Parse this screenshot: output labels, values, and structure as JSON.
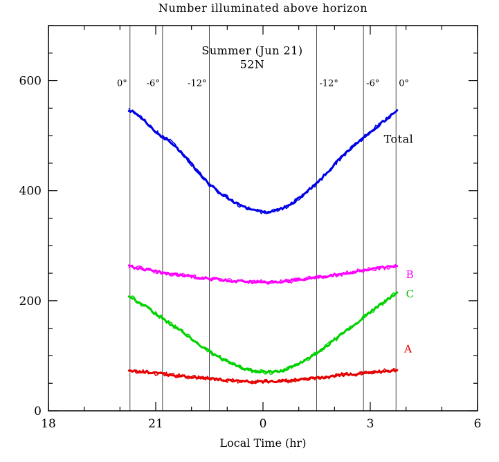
{
  "chart_data": {
    "type": "line",
    "title": "Number illuminated above horizon",
    "xlabel": "Local Time (hr)",
    "ylabel": "",
    "xlim": [
      18,
      30
    ],
    "ylim": [
      0,
      700
    ],
    "grid": false,
    "legend_position": "inline-labels",
    "x_ticks": [
      {
        "value": 18,
        "label": "18"
      },
      {
        "value": 21,
        "label": "21"
      },
      {
        "value": 24,
        "label": "0"
      },
      {
        "value": 27,
        "label": "3"
      },
      {
        "value": 30,
        "label": "6"
      }
    ],
    "x_minor_step": 1,
    "y_ticks": [
      {
        "value": 0,
        "label": "0"
      },
      {
        "value": 200,
        "label": "200"
      },
      {
        "value": 400,
        "label": "400"
      },
      {
        "value": 600,
        "label": "600"
      }
    ],
    "y_minor_step": 50,
    "sun_labels_y": 590,
    "sun_lines": [
      {
        "t": 20.28,
        "label": "0°",
        "label_side": "left"
      },
      {
        "t": 21.19,
        "label": "-6°",
        "label_side": "left"
      },
      {
        "t": 22.5,
        "label": "-12°",
        "label_side": "left"
      },
      {
        "t": 25.5,
        "label": "-12°",
        "label_side": "right"
      },
      {
        "t": 26.81,
        "label": "-6°",
        "label_side": "right"
      },
      {
        "t": 27.72,
        "label": "0°",
        "label_side": "right"
      }
    ],
    "annotations": [
      {
        "text": "Summer (Jun 21)",
        "x": 23.7,
        "y": 648,
        "color": "#000000",
        "anchor": "middle",
        "size": 16
      },
      {
        "text": "52N",
        "x": 23.7,
        "y": 623,
        "color": "#000000",
        "anchor": "middle",
        "size": 16
      },
      {
        "text": "Total",
        "x": 27.38,
        "y": 487,
        "color": "#000000",
        "anchor": "start",
        "size": 16
      },
      {
        "text": "B",
        "x": 28.0,
        "y": 241,
        "color": "#ff00ff",
        "anchor": "start",
        "size": 15
      },
      {
        "text": "C",
        "x": 28.0,
        "y": 206,
        "color": "#00bb00",
        "anchor": "start",
        "size": 15
      },
      {
        "text": "A",
        "x": 27.95,
        "y": 106,
        "color": "#dd0000",
        "anchor": "start",
        "size": 15
      }
    ],
    "series": [
      {
        "name": "Total",
        "color": "#0000e6",
        "points": [
          [
            20.25,
            547
          ],
          [
            20.5,
            538
          ],
          [
            20.8,
            520
          ],
          [
            21.0,
            507
          ],
          [
            21.2,
            497
          ],
          [
            21.35,
            493
          ],
          [
            21.6,
            477
          ],
          [
            21.9,
            456
          ],
          [
            22.2,
            433
          ],
          [
            22.5,
            412
          ],
          [
            22.8,
            396
          ],
          [
            23.1,
            383
          ],
          [
            23.4,
            372
          ],
          [
            23.7,
            364
          ],
          [
            24.0,
            361
          ],
          [
            24.3,
            362
          ],
          [
            24.6,
            369
          ],
          [
            24.9,
            381
          ],
          [
            25.2,
            396
          ],
          [
            25.5,
            413
          ],
          [
            25.8,
            433
          ],
          [
            26.1,
            455
          ],
          [
            26.4,
            473
          ],
          [
            26.7,
            491
          ],
          [
            27.0,
            507
          ],
          [
            27.3,
            522
          ],
          [
            27.5,
            533
          ],
          [
            27.75,
            546
          ]
        ]
      },
      {
        "name": "B",
        "color": "#ff00ff",
        "points": [
          [
            20.25,
            262
          ],
          [
            20.7,
            257
          ],
          [
            21.2,
            251
          ],
          [
            21.7,
            246
          ],
          [
            22.2,
            242
          ],
          [
            22.7,
            239
          ],
          [
            23.2,
            236
          ],
          [
            23.7,
            234
          ],
          [
            24.2,
            234
          ],
          [
            24.7,
            236
          ],
          [
            25.2,
            240
          ],
          [
            25.7,
            244
          ],
          [
            26.2,
            249
          ],
          [
            26.7,
            254
          ],
          [
            27.2,
            259
          ],
          [
            27.75,
            263
          ]
        ]
      },
      {
        "name": "C",
        "color": "#00d200",
        "points": [
          [
            20.25,
            208
          ],
          [
            20.5,
            199
          ],
          [
            20.8,
            186
          ],
          [
            21.1,
            172
          ],
          [
            21.4,
            158
          ],
          [
            21.7,
            146
          ],
          [
            22.0,
            131
          ],
          [
            22.3,
            117
          ],
          [
            22.6,
            104
          ],
          [
            22.9,
            93
          ],
          [
            23.2,
            84
          ],
          [
            23.5,
            77
          ],
          [
            23.8,
            72
          ],
          [
            24.1,
            70
          ],
          [
            24.4,
            72
          ],
          [
            24.7,
            77
          ],
          [
            25.0,
            85
          ],
          [
            25.3,
            96
          ],
          [
            25.6,
            109
          ],
          [
            25.9,
            124
          ],
          [
            26.2,
            139
          ],
          [
            26.5,
            154
          ],
          [
            26.8,
            169
          ],
          [
            27.1,
            184
          ],
          [
            27.4,
            198
          ],
          [
            27.75,
            215
          ]
        ]
      },
      {
        "name": "A",
        "color": "#e60000",
        "points": [
          [
            20.25,
            73
          ],
          [
            20.7,
            71
          ],
          [
            21.2,
            67
          ],
          [
            21.7,
            63
          ],
          [
            22.2,
            60
          ],
          [
            22.7,
            57
          ],
          [
            23.2,
            55
          ],
          [
            23.7,
            53
          ],
          [
            24.2,
            53
          ],
          [
            24.7,
            55
          ],
          [
            25.2,
            58
          ],
          [
            25.7,
            61
          ],
          [
            26.2,
            65
          ],
          [
            26.7,
            68
          ],
          [
            27.2,
            71
          ],
          [
            27.75,
            74
          ]
        ]
      }
    ]
  }
}
